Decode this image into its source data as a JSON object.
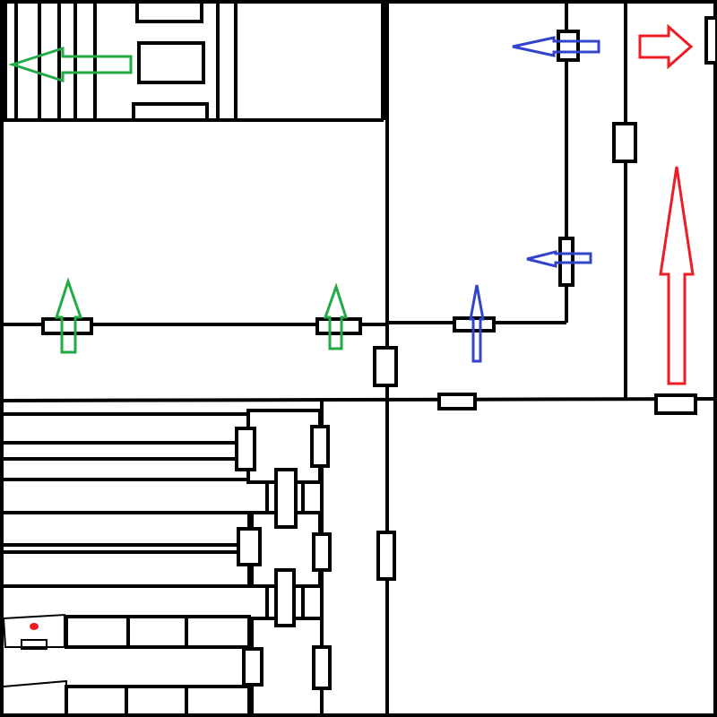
{
  "plan": {
    "wall_color": "#000000",
    "background": "#ffffff"
  },
  "routes": [
    {
      "id": "green",
      "color": "#22aa44"
    },
    {
      "id": "blue",
      "color": "#3344cc"
    },
    {
      "id": "red",
      "color": "#ee1c24"
    }
  ],
  "markers": [
    {
      "id": "red-dot",
      "color": "#ee1c24"
    }
  ]
}
